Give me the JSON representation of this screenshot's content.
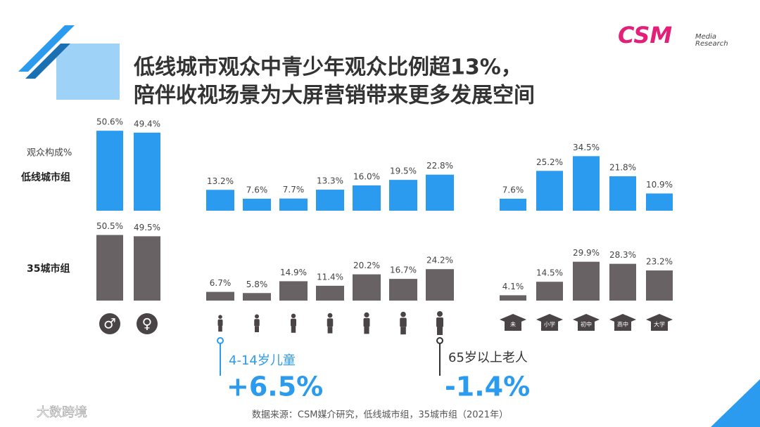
{
  "title": [
    "低线城市观众中青少年观众比例超13%，",
    "陪伴收视场景为大屏营销带来更多发展空间"
  ],
  "logo": {
    "brand": "CSM",
    "sub": [
      "Media",
      "Research"
    ]
  },
  "composition_label": "观众构成%",
  "chart_data": [
    {
      "type": "bar",
      "categories": [
        "♂",
        "♀"
      ],
      "series": [
        {
          "name": "低线城市组",
          "color": "#2b9bef",
          "values": [
            50.6,
            49.4
          ],
          "value_labels": [
            "50.6%",
            "49.4%"
          ]
        },
        {
          "name": "35城市组",
          "color": "#686264",
          "values": [
            50.5,
            49.5
          ],
          "value_labels": [
            "50.5%",
            "49.5%"
          ]
        }
      ]
    },
    {
      "type": "bar",
      "categories": [
        null,
        null,
        null,
        null,
        null,
        null,
        null
      ],
      "series": [
        {
          "color": "#2b9bef",
          "values": [
            13.2,
            7.6,
            7.7,
            13.3,
            16.0,
            19.5,
            22.8
          ],
          "value_labels": [
            "13.2%",
            "7.6%",
            "7.7%",
            "13.3%",
            "16.0%",
            "19.5%",
            "22.8%"
          ]
        },
        {
          "color": "#686264",
          "values": [
            6.7,
            5.8,
            14.9,
            11.4,
            20.2,
            16.7,
            24.2
          ],
          "value_labels": [
            "6.7%",
            "5.8%",
            "14.9%",
            "11.4%",
            "20.2%",
            "16.7%",
            "24.2%"
          ]
        }
      ]
    },
    {
      "type": "bar",
      "categories": [
        "未",
        "小学",
        "初中",
        "高中",
        "大学"
      ],
      "series": [
        {
          "color": "#2b9bef",
          "values": [
            7.6,
            25.2,
            34.5,
            21.8,
            10.9
          ],
          "value_labels": [
            "7.6%",
            "25.2%",
            "34.5%",
            "21.8%",
            "10.9%"
          ]
        },
        {
          "color": "#686264",
          "values": [
            4.1,
            14.5,
            29.9,
            28.3,
            23.2
          ],
          "value_labels": [
            "4.1%",
            "14.5%",
            "29.9%",
            "28.3%",
            "23.2%"
          ]
        }
      ]
    }
  ],
  "callouts": [
    {
      "label": "4-14岁儿童",
      "value": "+6.5%"
    },
    {
      "label": "65岁以上老人",
      "value": "-1.4%"
    }
  ],
  "source": "数据来源：CSM媒介研究，低线城市组，35城市组（2021年）",
  "watermark": "大数跨境"
}
